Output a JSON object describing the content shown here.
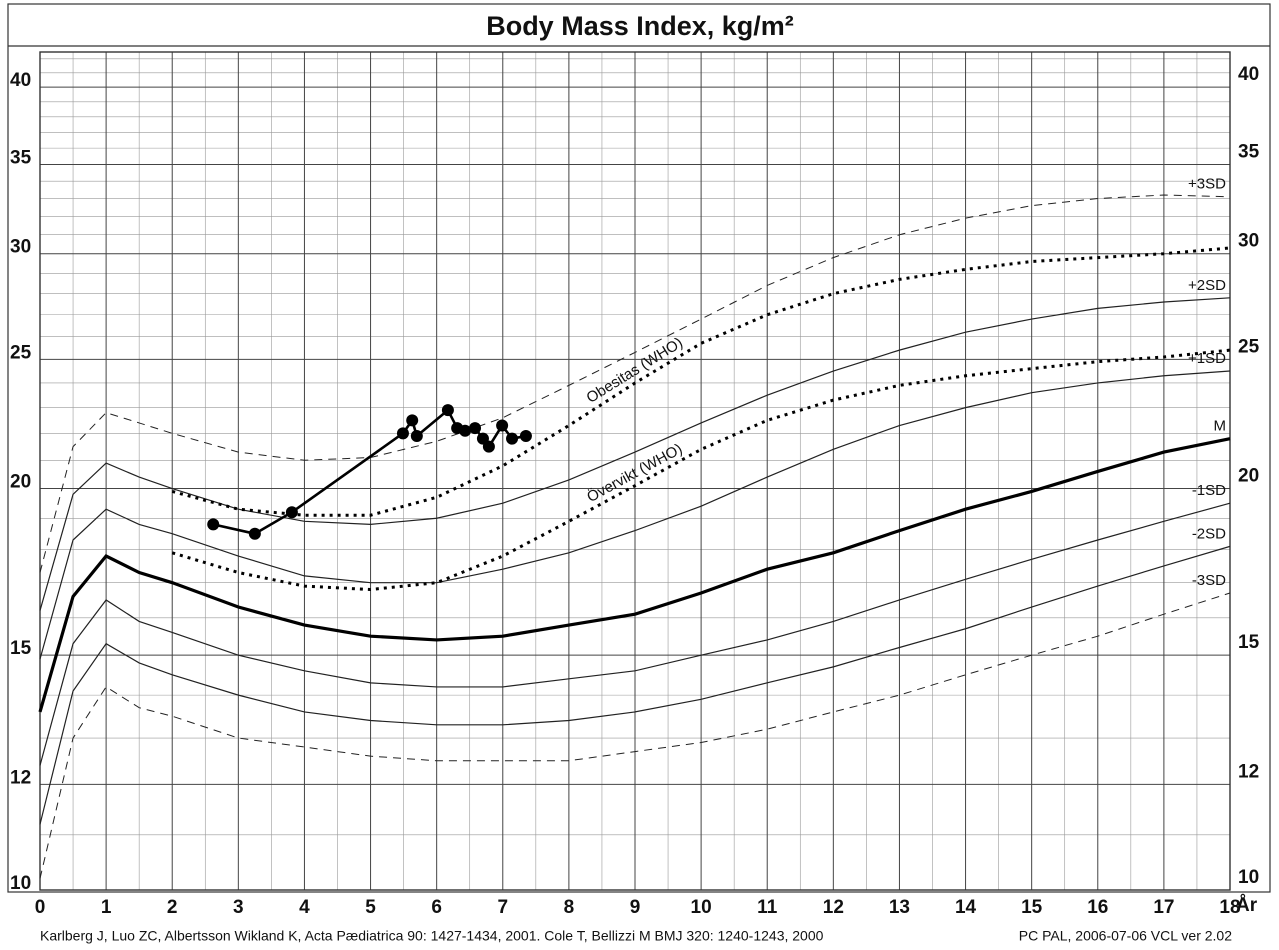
{
  "chart_data": {
    "type": "line",
    "title": "Body Mass Index, kg/m²",
    "x_label": "År",
    "footer_left": "Karlberg J, Luo ZC, Albertsson Wikland K, Acta Pædiatrica 90: 1427-1434, 2001.  Cole T, Bellizzi M  BMJ 320: 1240-1243, 2000",
    "footer_right": "PC PAL, 2006-07-06 VCL ver 2.02",
    "yscale": "log",
    "grid": true,
    "xlim": [
      0,
      18
    ],
    "ylim": [
      10,
      42.5
    ],
    "xticks": [
      0,
      1,
      2,
      3,
      4,
      5,
      6,
      7,
      8,
      9,
      10,
      11,
      12,
      13,
      14,
      15,
      16,
      17,
      18
    ],
    "yticks": [
      10,
      12,
      15,
      20,
      25,
      30,
      35,
      40
    ],
    "xminorticks": [
      0.5,
      1.5,
      2.5,
      3.5,
      4.5,
      5.5,
      6.5,
      7.5,
      8.5,
      9.5,
      10.5,
      11.5,
      12.5,
      13.5,
      14.5,
      15.5,
      16.5,
      17.5
    ],
    "yminorticks": [
      11,
      13,
      14,
      16,
      17,
      18,
      19,
      21,
      22,
      23,
      24,
      26,
      27,
      28,
      29,
      31,
      32,
      33,
      34,
      36,
      37,
      38,
      39,
      41,
      42
    ],
    "x": [
      0,
      0.5,
      1,
      1.5,
      2,
      3,
      4,
      5,
      6,
      7,
      8,
      9,
      10,
      11,
      12,
      13,
      14,
      15,
      16,
      17,
      18
    ],
    "series": [
      {
        "name": "+3SD",
        "color": "#222",
        "style": "dashed",
        "width": 1,
        "values": [
          17.3,
          21.5,
          22.8,
          22.4,
          22.0,
          21.3,
          21.0,
          21.1,
          21.7,
          22.6,
          23.9,
          25.3,
          26.8,
          28.4,
          29.8,
          31.0,
          31.9,
          32.6,
          33.0,
          33.2,
          33.1
        ]
      },
      {
        "name": "+2SD",
        "color": "#222",
        "style": "solid",
        "width": 1.2,
        "values": [
          16.2,
          19.8,
          20.9,
          20.4,
          20.0,
          19.3,
          18.9,
          18.8,
          19.0,
          19.5,
          20.3,
          21.3,
          22.4,
          23.5,
          24.5,
          25.4,
          26.2,
          26.8,
          27.3,
          27.6,
          27.8
        ]
      },
      {
        "name": "+1SD",
        "color": "#222",
        "style": "solid",
        "width": 1.2,
        "values": [
          14.9,
          18.3,
          19.3,
          18.8,
          18.5,
          17.8,
          17.2,
          17.0,
          17.0,
          17.4,
          17.9,
          18.6,
          19.4,
          20.4,
          21.4,
          22.3,
          23.0,
          23.6,
          24.0,
          24.3,
          24.5
        ]
      },
      {
        "name": "M",
        "color": "#000",
        "style": "solid",
        "width": 3.2,
        "values": [
          13.6,
          16.6,
          17.8,
          17.3,
          17.0,
          16.3,
          15.8,
          15.5,
          15.4,
          15.5,
          15.8,
          16.1,
          16.7,
          17.4,
          17.9,
          18.6,
          19.3,
          19.9,
          20.6,
          21.3,
          21.8
        ]
      },
      {
        "name": "-1SD",
        "color": "#222",
        "style": "solid",
        "width": 1.2,
        "values": [
          12.4,
          15.3,
          16.5,
          15.9,
          15.6,
          15.0,
          14.6,
          14.3,
          14.2,
          14.2,
          14.4,
          14.6,
          15.0,
          15.4,
          15.9,
          16.5,
          17.1,
          17.7,
          18.3,
          18.9,
          19.5
        ]
      },
      {
        "name": "-2SD",
        "color": "#222",
        "style": "solid",
        "width": 1.2,
        "values": [
          11.2,
          14.1,
          15.3,
          14.8,
          14.5,
          14.0,
          13.6,
          13.4,
          13.3,
          13.3,
          13.4,
          13.6,
          13.9,
          14.3,
          14.7,
          15.2,
          15.7,
          16.3,
          16.9,
          17.5,
          18.1
        ]
      },
      {
        "name": "-3SD",
        "color": "#222",
        "style": "dashed",
        "width": 1,
        "values": [
          10.2,
          13.0,
          14.2,
          13.7,
          13.5,
          13.0,
          12.8,
          12.6,
          12.5,
          12.5,
          12.5,
          12.7,
          12.9,
          13.2,
          13.6,
          14.0,
          14.5,
          15.0,
          15.5,
          16.1,
          16.7
        ]
      },
      {
        "name": "Obesitas (WHO)",
        "color": "#000",
        "style": "dotted",
        "width": 3,
        "values": [
          null,
          null,
          null,
          null,
          19.9,
          19.3,
          19.1,
          19.1,
          19.7,
          20.8,
          22.3,
          24.0,
          25.7,
          27.0,
          28.0,
          28.7,
          29.2,
          29.6,
          29.8,
          30.0,
          30.3
        ]
      },
      {
        "name": "Övervikt (WHO)",
        "color": "#000",
        "style": "dotted",
        "width": 3,
        "values": [
          null,
          null,
          null,
          null,
          17.9,
          17.3,
          16.9,
          16.8,
          17.0,
          17.8,
          18.9,
          20.1,
          21.4,
          22.5,
          23.3,
          23.9,
          24.3,
          24.6,
          24.9,
          25.1,
          25.4
        ]
      },
      {
        "color": "#000",
        "style": "solid",
        "width": 2.6,
        "markers": true,
        "x": [
          2.62,
          3.25,
          3.81,
          5.49,
          5.63,
          5.7,
          6.17,
          6.31,
          6.43,
          6.58,
          6.7,
          6.79,
          6.99,
          7.14,
          7.35
        ],
        "values": [
          18.8,
          18.5,
          19.2,
          22.0,
          22.5,
          21.9,
          22.9,
          22.2,
          22.1,
          22.2,
          21.8,
          21.5,
          22.3,
          21.8,
          21.9
        ]
      }
    ]
  }
}
